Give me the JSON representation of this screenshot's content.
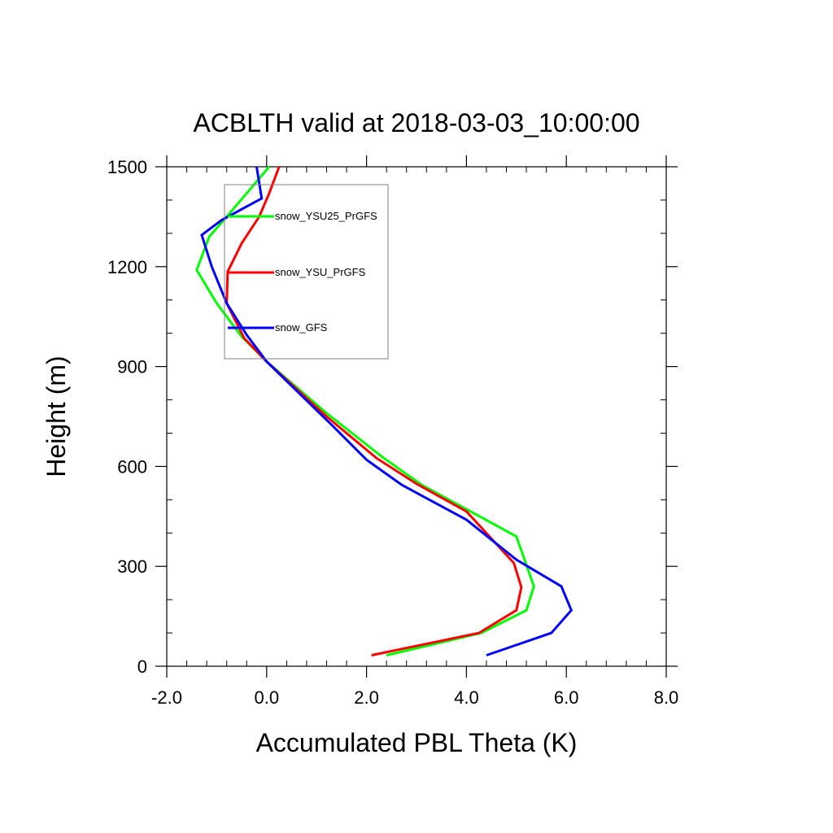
{
  "chart_data": {
    "type": "line",
    "title": "ACBLTH valid at 2018-03-03_10:00:00",
    "xlabel": "Accumulated PBL Theta (K)",
    "ylabel": "Height (m)",
    "xlim": [
      -2.0,
      8.0
    ],
    "ylim": [
      0,
      1500
    ],
    "x_ticks": [
      "-2.0",
      "0.0",
      "2.0",
      "4.0",
      "6.0",
      "8.0"
    ],
    "y_ticks": [
      "0",
      "300",
      "600",
      "900",
      "1200",
      "1500"
    ],
    "grid": false,
    "legend_position": "top-left",
    "series": [
      {
        "name": "snow_YSU25_PrGFS",
        "color": "#00ff00",
        "points": [
          [
            2.4,
            33
          ],
          [
            4.3,
            100
          ],
          [
            5.2,
            168
          ],
          [
            5.35,
            240
          ],
          [
            5.0,
            390
          ],
          [
            3.1,
            545
          ],
          [
            2.3,
            630
          ],
          [
            1.2,
            760
          ],
          [
            0.0,
            915
          ],
          [
            -0.5,
            990
          ],
          [
            -1.0,
            1090
          ],
          [
            -1.4,
            1190
          ],
          [
            -1.15,
            1290
          ],
          [
            -0.8,
            1350
          ],
          [
            -0.4,
            1420
          ],
          [
            0.05,
            1500
          ]
        ]
      },
      {
        "name": "snow_YSU_PrGFS",
        "color": "#ff0000",
        "points": [
          [
            2.1,
            33
          ],
          [
            4.25,
            100
          ],
          [
            5.0,
            168
          ],
          [
            5.1,
            237
          ],
          [
            4.95,
            310
          ],
          [
            4.0,
            465
          ],
          [
            3.0,
            548
          ],
          [
            2.2,
            625
          ],
          [
            1.2,
            750
          ],
          [
            0.0,
            915
          ],
          [
            -0.45,
            985
          ],
          [
            -0.8,
            1090
          ],
          [
            -0.78,
            1185
          ],
          [
            -0.5,
            1270
          ],
          [
            -0.15,
            1350
          ],
          [
            0.05,
            1420
          ],
          [
            0.25,
            1500
          ]
        ]
      },
      {
        "name": "snow_GFS",
        "color": "#0000ff",
        "points": [
          [
            4.4,
            33
          ],
          [
            5.7,
            100
          ],
          [
            6.1,
            168
          ],
          [
            5.9,
            240
          ],
          [
            5.0,
            320
          ],
          [
            4.0,
            440
          ],
          [
            2.7,
            545
          ],
          [
            2.0,
            620
          ],
          [
            1.3,
            725
          ],
          [
            0.0,
            915
          ],
          [
            -0.4,
            995
          ],
          [
            -0.8,
            1090
          ],
          [
            -1.1,
            1200
          ],
          [
            -1.3,
            1295
          ],
          [
            -0.9,
            1340
          ],
          [
            -0.1,
            1405
          ],
          [
            -0.2,
            1500
          ]
        ]
      }
    ]
  }
}
